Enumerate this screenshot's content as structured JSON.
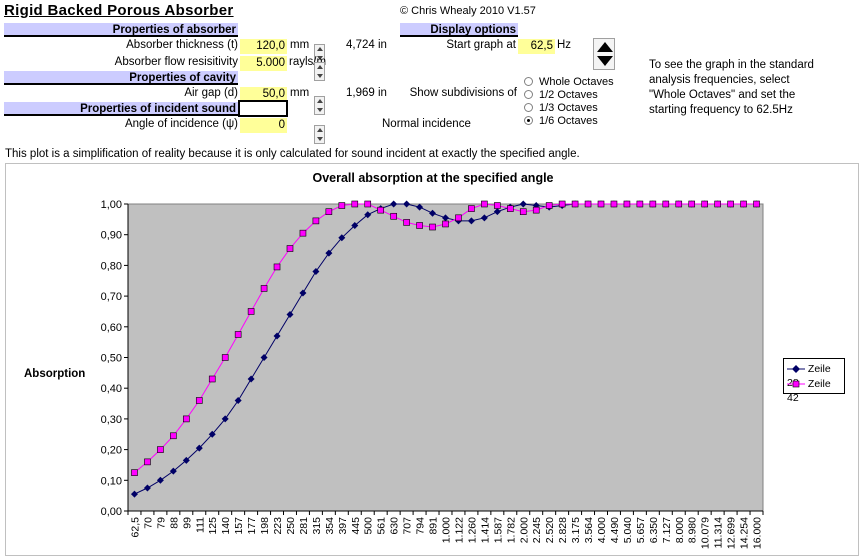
{
  "app": {
    "title": "Rigid Backed Porous Absorber",
    "copyright": "© Chris Whealy 2010  V1.57"
  },
  "absorber": {
    "header": "Properties of absorber",
    "thickness_label": "Absorber thickness (t)",
    "thickness_value": "120,0",
    "thickness_unit": "mm",
    "thickness_in": "4,724 in",
    "flow_label": "Absorber flow resisitivity",
    "flow_value": "5.000",
    "flow_unit": "rayls/m"
  },
  "cavity": {
    "header": "Properties of cavity",
    "gap_label": "Air gap (d)",
    "gap_value": "50,0",
    "gap_unit": "mm",
    "gap_in": "1,969 in"
  },
  "incident": {
    "header": "Properties of incident sound",
    "angle_label": "Angle of incidence (ψ)",
    "angle_value": "0",
    "angle_desc": "Normal incidence"
  },
  "display": {
    "header": "Display options",
    "start_label": "Start graph at",
    "start_value": "62,5",
    "start_unit": "Hz",
    "subdiv_label": "Show subdivisions of",
    "options": [
      "Whole Octaves",
      "1/2 Octaves",
      "1/3 Octaves",
      "1/6 Octaves"
    ],
    "selected": "1/6 Octaves",
    "note": "To see the graph in the standard\nanalysis frequencies, select\n\"Whole Octaves\" and set the\nstarting frequency to 62.5Hz"
  },
  "disclaimer": "This plot is a simplification of reality because it is only calculated for sound incident at exactly the specified angle.",
  "chart_data": {
    "type": "line",
    "title": "Overall absorption at the specified angle",
    "ylabel": "Absorption",
    "xlabel": "",
    "ylim": [
      0,
      1
    ],
    "y_ticks": [
      "0,00",
      "0,10",
      "0,20",
      "0,30",
      "0,40",
      "0,50",
      "0,60",
      "0,70",
      "0,80",
      "0,90",
      "1,00"
    ],
    "grid": false,
    "legend": "right",
    "plot_background": "#c0c0c0",
    "categories": [
      "62,5",
      "70",
      "79",
      "88",
      "99",
      "111",
      "125",
      "140",
      "157",
      "177",
      "198",
      "223",
      "250",
      "281",
      "315",
      "354",
      "397",
      "445",
      "500",
      "561",
      "630",
      "707",
      "794",
      "891",
      "1.000",
      "1.122",
      "1.260",
      "1.414",
      "1.587",
      "1.782",
      "2.000",
      "2.245",
      "2.520",
      "2.828",
      "3.175",
      "3.564",
      "4.000",
      "4.490",
      "5.040",
      "5.657",
      "6.350",
      "7.127",
      "8.000",
      "8.980",
      "10.079",
      "11.314",
      "12.699",
      "14.254",
      "16.000"
    ],
    "series": [
      {
        "name": "Zeile 28",
        "color": "#000066",
        "marker": "diamond",
        "values": [
          0.055,
          0.075,
          0.1,
          0.13,
          0.165,
          0.205,
          0.25,
          0.3,
          0.36,
          0.43,
          0.5,
          0.57,
          0.64,
          0.71,
          0.78,
          0.84,
          0.89,
          0.93,
          0.965,
          0.985,
          1.0,
          1.0,
          0.99,
          0.97,
          0.955,
          0.945,
          0.945,
          0.955,
          0.975,
          0.99,
          1.0,
          0.995,
          0.99,
          0.995,
          1.0,
          1.0,
          1.0,
          1.0,
          1.0,
          1.0,
          1.0,
          1.0,
          1.0,
          1.0,
          1.0,
          1.0,
          1.0,
          1.0,
          1.0
        ]
      },
      {
        "name": "Zeile 42",
        "color": "#ff00ff",
        "marker": "square",
        "values": [
          0.125,
          0.16,
          0.2,
          0.245,
          0.3,
          0.36,
          0.43,
          0.5,
          0.575,
          0.65,
          0.725,
          0.795,
          0.855,
          0.905,
          0.945,
          0.975,
          0.995,
          1.0,
          1.0,
          0.98,
          0.96,
          0.94,
          0.93,
          0.925,
          0.935,
          0.955,
          0.985,
          1.0,
          0.995,
          0.985,
          0.975,
          0.98,
          0.995,
          1.0,
          1.0,
          1.0,
          1.0,
          1.0,
          1.0,
          1.0,
          1.0,
          1.0,
          1.0,
          1.0,
          1.0,
          1.0,
          1.0,
          1.0,
          1.0
        ]
      }
    ]
  }
}
